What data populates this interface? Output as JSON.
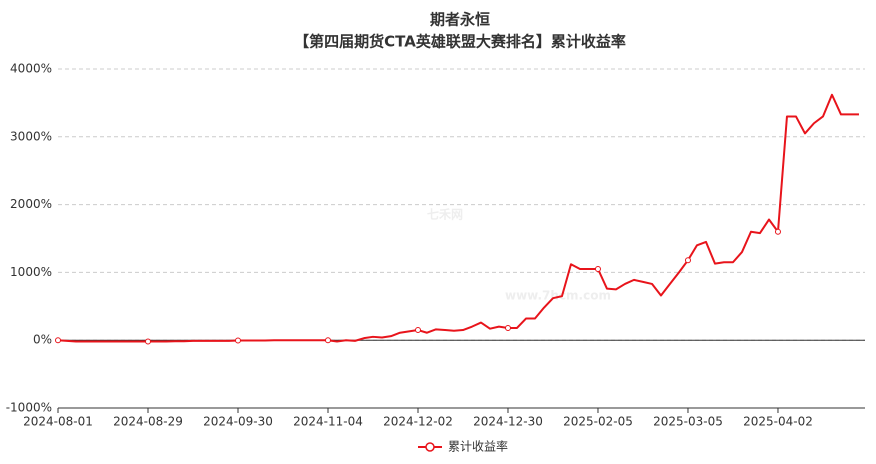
{
  "chart_data": {
    "type": "line",
    "title": "期者永恒",
    "subtitle": "【第四届期货CTA英雄联盟大赛排名】累计收益率",
    "watermark": "七禾网",
    "watermark_url": "www.7hcm.com",
    "categories": [
      "2024-08-01",
      null,
      null,
      null,
      null,
      null,
      null,
      null,
      null,
      null,
      "2024-08-29",
      null,
      null,
      null,
      null,
      null,
      null,
      null,
      null,
      null,
      "2024-09-30",
      null,
      null,
      null,
      null,
      null,
      null,
      null,
      null,
      null,
      "2024-11-04",
      null,
      null,
      null,
      null,
      null,
      null,
      null,
      null,
      null,
      "2024-12-02",
      null,
      null,
      null,
      null,
      null,
      null,
      null,
      null,
      null,
      "2024-12-30",
      null,
      null,
      null,
      null,
      null,
      null,
      null,
      null,
      null,
      "2025-02-05",
      null,
      null,
      null,
      null,
      null,
      null,
      null,
      null,
      null,
      "2025-03-05",
      null,
      null,
      null,
      null,
      null,
      null,
      null,
      null,
      null,
      "2025-04-02",
      null,
      null,
      null,
      null,
      null,
      null,
      null,
      null,
      null
    ],
    "series": [
      {
        "name": "累计收益率",
        "color": "#e8141b",
        "values": [
          0,
          -10,
          -20,
          -20,
          -20,
          -20,
          -20,
          -20,
          -20,
          -20,
          -20,
          -20,
          -20,
          -15,
          -15,
          -10,
          -10,
          -10,
          -10,
          -10,
          -5,
          -5,
          -5,
          -5,
          0,
          0,
          0,
          0,
          0,
          0,
          0,
          -20,
          0,
          -10,
          30,
          50,
          40,
          60,
          110,
          130,
          150,
          110,
          160,
          150,
          140,
          150,
          200,
          260,
          170,
          200,
          180,
          180,
          320,
          320,
          480,
          620,
          650,
          1120,
          1050,
          1050,
          1050,
          760,
          750,
          830,
          890,
          860,
          830,
          660,
          830,
          1000,
          1180,
          1400,
          1450,
          1130,
          1150,
          1150,
          1300,
          1600,
          1580,
          1780,
          1600,
          3300,
          3300,
          3050,
          3200,
          3300,
          3620,
          3330,
          3330,
          3330
        ]
      }
    ],
    "ylim": [
      -1000,
      4000
    ],
    "yticks": [
      {
        "value": -1000,
        "label": "-1000%"
      },
      {
        "value": 0,
        "label": "0%"
      },
      {
        "value": 1000,
        "label": "1000%"
      },
      {
        "value": 2000,
        "label": "2000%"
      },
      {
        "value": 3000,
        "label": "3000%"
      },
      {
        "value": 4000,
        "label": "4000%"
      }
    ],
    "grid": true,
    "legend": "bottom"
  }
}
